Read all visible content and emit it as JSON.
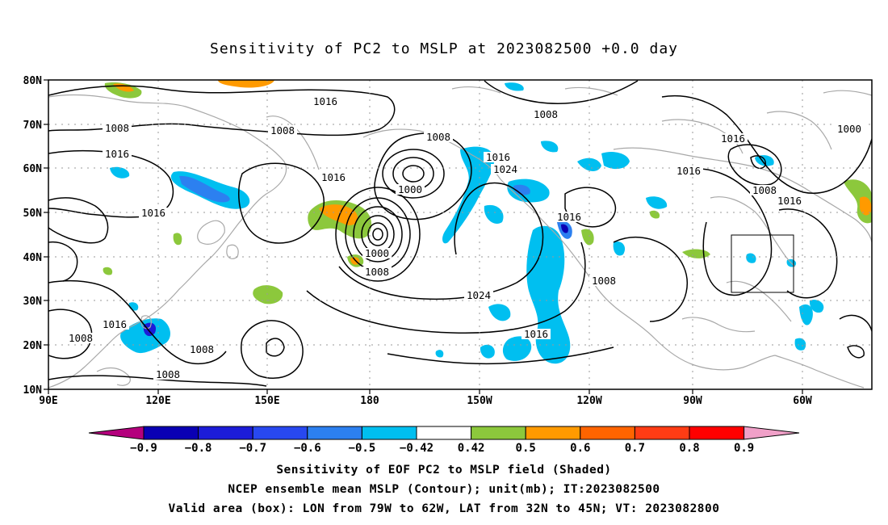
{
  "title": "Sensitivity of PC2 to MSLP at 2023082500 +0.0 day",
  "map": {
    "lat_labels": [
      "80N",
      "70N",
      "60N",
      "50N",
      "40N",
      "30N",
      "20N",
      "10N"
    ],
    "lon_labels": [
      "90E",
      "120E",
      "150E",
      "180",
      "150W",
      "120W",
      "90W",
      "60W"
    ],
    "domain": {
      "lon_west": "90E",
      "lon_east": "45W",
      "lat_south": "10N",
      "lat_north": "80N"
    },
    "contour_labels": [
      "1016",
      "1008",
      "1016",
      "1008",
      "1016",
      "1016",
      "1000",
      "1008",
      "1016",
      "1024",
      "1008",
      "1016",
      "1000",
      "1008",
      "1024",
      "1016",
      "1008",
      "1016",
      "1016",
      "1000",
      "1008",
      "1016",
      "1016",
      "1008",
      "1008",
      "1008"
    ],
    "valid_area_box": {
      "lon_from": "79W",
      "lon_to": "62W",
      "lat_from": "32N",
      "lat_to": "45N"
    },
    "colors": {
      "coastline": "#a8a8a8",
      "contour": "#000000",
      "grid": "#9a9a9a"
    }
  },
  "colorbar": {
    "tick_labels": [
      "−0.9",
      "−0.8",
      "−0.7",
      "−0.6",
      "−0.5",
      "−0.42",
      "0.42",
      "0.5",
      "0.6",
      "0.7",
      "0.8",
      "0.9"
    ],
    "colors": [
      "#b4007d",
      "#0a00b4",
      "#1c1cd8",
      "#2848f0",
      "#2c80f0",
      "#00bff0",
      "#ffffff",
      "#8cc83c",
      "#ff9a00",
      "#ff6400",
      "#ff3c14",
      "#ff0000",
      "#f0a0c8"
    ]
  },
  "captions": [
    "Sensitivity of EOF PC2 to MSLP field (Shaded)",
    "NCEP ensemble mean MSLP (Contour); unit(mb); IT:2023082500",
    "Valid area (box): LON from 79W to 62W, LAT from 32N to 45N; VT: 2023082800"
  ]
}
